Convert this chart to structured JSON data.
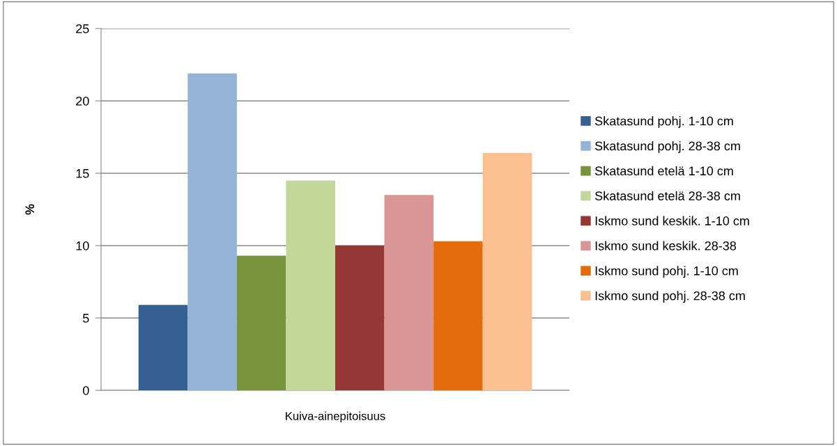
{
  "chart_data": {
    "type": "bar",
    "ylabel": "%",
    "categories": [
      "Kuiva-ainepitoisuus"
    ],
    "series": [
      {
        "name": "Skatasund pohj. 1-10 cm",
        "color": "#366092",
        "values": [
          5.9
        ]
      },
      {
        "name": "Skatasund pohj. 28-38 cm",
        "color": "#95b3d7",
        "values": [
          21.9
        ]
      },
      {
        "name": "Skatasund etelä 1-10 cm",
        "color": "#77933c",
        "values": [
          9.3
        ]
      },
      {
        "name": "Skatasund etelä 28-38 cm",
        "color": "#c4d79b",
        "values": [
          14.5
        ]
      },
      {
        "name": "Iskmo sund keskik. 1-10 cm",
        "color": "#953735",
        "values": [
          10.0
        ]
      },
      {
        "name": "Iskmo sund keskik. 28-38",
        "color": "#da9694",
        "values": [
          13.5
        ]
      },
      {
        "name": "Iskmo sund pohj. 1-10 cm",
        "color": "#e46c0a",
        "values": [
          10.3
        ]
      },
      {
        "name": "Iskmo sund pohj. 28-38 cm",
        "color": "#fac090",
        "values": [
          16.4
        ]
      }
    ],
    "ylim": [
      0,
      25
    ],
    "yticks": [
      0,
      5,
      10,
      15,
      20,
      25
    ],
    "grid": "y",
    "legend": "right"
  }
}
